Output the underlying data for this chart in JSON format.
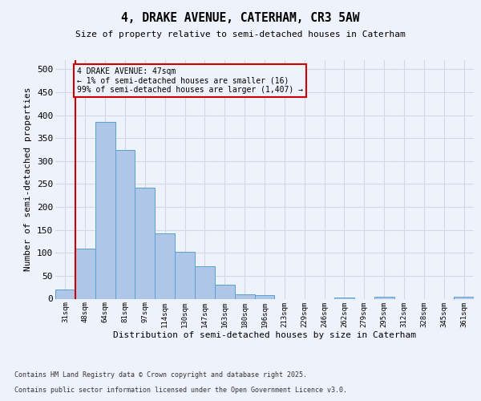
{
  "title_line1": "4, DRAKE AVENUE, CATERHAM, CR3 5AW",
  "title_line2": "Size of property relative to semi-detached houses in Caterham",
  "xlabel": "Distribution of semi-detached houses by size in Caterham",
  "ylabel": "Number of semi-detached properties",
  "bins": [
    "31sqm",
    "48sqm",
    "64sqm",
    "81sqm",
    "97sqm",
    "114sqm",
    "130sqm",
    "147sqm",
    "163sqm",
    "180sqm",
    "196sqm",
    "213sqm",
    "229sqm",
    "246sqm",
    "262sqm",
    "279sqm",
    "295sqm",
    "312sqm",
    "328sqm",
    "345sqm",
    "361sqm"
  ],
  "values": [
    20,
    110,
    385,
    325,
    242,
    143,
    102,
    70,
    30,
    10,
    7,
    0,
    0,
    0,
    3,
    0,
    5,
    0,
    0,
    0,
    5
  ],
  "bar_color": "#aec6e8",
  "bar_edge_color": "#5a9fd4",
  "grid_color": "#d0d8e8",
  "annotation_text": "4 DRAKE AVENUE: 47sqm\n← 1% of semi-detached houses are smaller (16)\n99% of semi-detached houses are larger (1,407) →",
  "vline_color": "#cc0000",
  "annotation_box_color": "#cc0000",
  "ylim": [
    0,
    520
  ],
  "yticks": [
    0,
    50,
    100,
    150,
    200,
    250,
    300,
    350,
    400,
    450,
    500
  ],
  "footer_line1": "Contains HM Land Registry data © Crown copyright and database right 2025.",
  "footer_line2": "Contains public sector information licensed under the Open Government Licence v3.0.",
  "bg_color": "#eef2fa"
}
